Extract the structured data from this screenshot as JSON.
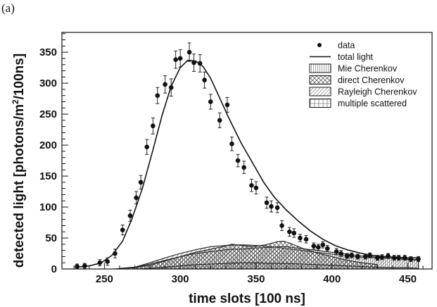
{
  "panel_label": "(a)",
  "chart_data": {
    "type": "line",
    "xlabel": "time slots [100 ns]",
    "ylabel_parts": [
      "detected light [photons/m",
      "2",
      "/100ns]"
    ],
    "xlim": [
      222,
      466
    ],
    "ylim": [
      0,
      382
    ],
    "xticks": [
      250,
      300,
      350,
      400,
      450
    ],
    "yticks": [
      0,
      50,
      100,
      150,
      200,
      250,
      300,
      350
    ],
    "legend": [
      "data",
      "total light",
      "Mie Cherenkov",
      "direct Cherenkov",
      "Rayleigh Cherenkov",
      "multiple scattered"
    ],
    "series": [
      {
        "name": "data",
        "style": "points-with-errors",
        "x": [
          232,
          237,
          247,
          252,
          257,
          262,
          267,
          271,
          274,
          278,
          282,
          285,
          290,
          294,
          297,
          300,
          306,
          309,
          313,
          316,
          320,
          326,
          331,
          334,
          338,
          342,
          347,
          350,
          357,
          360,
          364,
          367,
          372,
          375,
          379,
          383,
          388,
          391,
          394,
          397,
          403,
          406,
          410,
          413,
          417,
          422,
          425,
          430,
          433,
          437,
          441,
          444,
          448,
          452,
          457
        ],
        "y": [
          4,
          5,
          10,
          12,
          25,
          63,
          86,
          115,
          140,
          197,
          231,
          280,
          298,
          293,
          338,
          340,
          350,
          333,
          332,
          305,
          270,
          240,
          265,
          202,
          175,
          164,
          135,
          131,
          107,
          101,
          99,
          70,
          60,
          58,
          50,
          48,
          37,
          35,
          39,
          33,
          28,
          25,
          21,
          22,
          20,
          20,
          22,
          18,
          19,
          21,
          18,
          18,
          18,
          16,
          16
        ],
        "err": [
          4,
          4,
          5,
          6,
          7,
          8,
          9,
          10,
          11,
          12,
          13,
          13,
          14,
          14,
          14,
          14,
          15,
          14,
          14,
          13,
          12,
          12,
          12,
          11,
          10,
          10,
          10,
          10,
          9,
          9,
          8,
          8,
          7,
          7,
          6,
          6,
          5,
          5,
          5,
          5,
          5,
          5,
          4,
          4,
          4,
          4,
          4,
          4,
          4,
          4,
          4,
          4,
          4,
          4,
          4
        ]
      },
      {
        "name": "total light",
        "style": "line",
        "x": [
          232,
          240,
          248,
          255,
          262,
          268,
          275,
          282,
          288,
          294,
          300,
          305,
          310,
          315,
          320,
          326,
          332,
          340,
          348,
          355,
          362,
          370,
          378,
          386,
          394,
          402,
          410,
          418,
          426,
          434,
          442,
          450,
          457
        ],
        "y": [
          3,
          5,
          10,
          22,
          45,
          80,
          130,
          192,
          248,
          295,
          325,
          337,
          336,
          327,
          308,
          276,
          244,
          204,
          170,
          140,
          116,
          95,
          77,
          61,
          48,
          38,
          31,
          26,
          22,
          20,
          19,
          18,
          18
        ]
      },
      {
        "name": "Mie Cherenkov",
        "style": "band",
        "x": [
          260,
          270,
          280,
          290,
          300,
          310,
          320,
          330,
          335,
          340,
          350,
          360,
          365,
          370,
          380,
          390,
          400,
          410,
          420,
          430,
          440,
          450,
          457
        ],
        "y": [
          1,
          3,
          8,
          14,
          20,
          25,
          28,
          31,
          32,
          32,
          34,
          35,
          36,
          36,
          33,
          30,
          27,
          24,
          21,
          19,
          17,
          15,
          14
        ]
      },
      {
        "name": "direct Cherenkov",
        "style": "band",
        "x": [
          255,
          270,
          280,
          290,
          300,
          310,
          320,
          328,
          334,
          340,
          348,
          356,
          364,
          368,
          372,
          380,
          390,
          400,
          410,
          420,
          430
        ],
        "y": [
          0,
          2,
          6,
          13,
          20,
          27,
          32,
          36,
          40,
          38,
          36,
          39,
          44,
          45,
          42,
          34,
          26,
          20,
          14,
          10,
          7
        ]
      },
      {
        "name": "Rayleigh Cherenkov",
        "style": "band",
        "x": [
          262,
          270,
          280,
          290,
          300,
          310,
          320,
          330,
          340,
          350,
          360,
          370,
          380,
          390,
          400,
          410,
          420,
          430,
          440,
          450,
          457
        ],
        "y": [
          1,
          3,
          10,
          18,
          25,
          31,
          36,
          38,
          39,
          38,
          36,
          33,
          30,
          27,
          24,
          21,
          19,
          18,
          17,
          16,
          15
        ]
      },
      {
        "name": "multiple scattered",
        "style": "band",
        "x": [
          270,
          280,
          290,
          300,
          310,
          320,
          330,
          340,
          350,
          360,
          370,
          380,
          390,
          400,
          410,
          420,
          430,
          440,
          450,
          457
        ],
        "y": [
          0,
          1,
          3,
          5,
          7,
          8,
          9,
          10,
          10,
          9,
          9,
          8,
          7,
          6,
          5,
          4,
          3,
          2,
          2,
          1
        ]
      }
    ]
  }
}
